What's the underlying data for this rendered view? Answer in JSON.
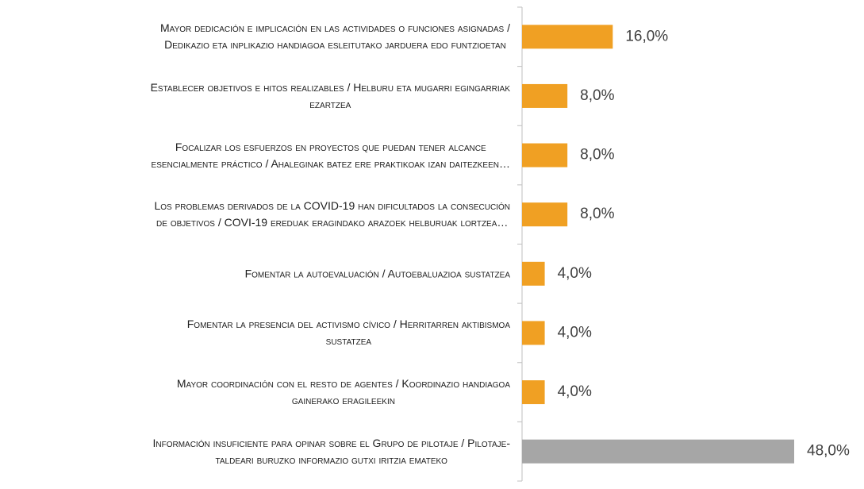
{
  "chart_data": {
    "type": "hbar",
    "categories": [
      "Mayor dedicación e implicación en las actividades o funciones asignadas /\nDedikazio eta inplikazio handiagoa esleitutako jarduera edo funtzioetan",
      "Establecer objetivos e hitos realizables / Helburu eta mugarri egingarriak\nezartzea",
      "Focalizar los esfuerzos en proyectos que puedan tener alcance\nesencialmente práctico / Ahaleginak batez ere praktikoak izan daitezkeen…",
      "Los problemas derivados de la COVID-19 han dificultados la consecución\nde objetivos / COVI-19 ereduak eragindako arazoek helburuak lortzea…",
      "Fomentar la autoevaluación / Autoebaluazioa sustatzea",
      "Fomentar la presencia del activismo cívico / Herritarren aktibismoa\nsustatzea",
      "Mayor coordinación con el resto de agentes / Koordinazio handiagoa\ngainerako eragileekin",
      "Información insuficiente para opinar sobre el Grupo de pilotaje / Pilotaje-\ntaldeari buruzko informazio gutxi iritzia emateko"
    ],
    "values": [
      16,
      8,
      8,
      8,
      4,
      4,
      4,
      48
    ],
    "value_labels": [
      "16,0%",
      "8,0%",
      "8,0%",
      "8,0%",
      "4,0%",
      "4,0%",
      "4,0%",
      "48,0%"
    ],
    "colors": [
      "#f0a023",
      "#f0a023",
      "#f0a023",
      "#f0a023",
      "#f0a023",
      "#f0a023",
      "#f0a023",
      "#a6a6a6"
    ]
  }
}
